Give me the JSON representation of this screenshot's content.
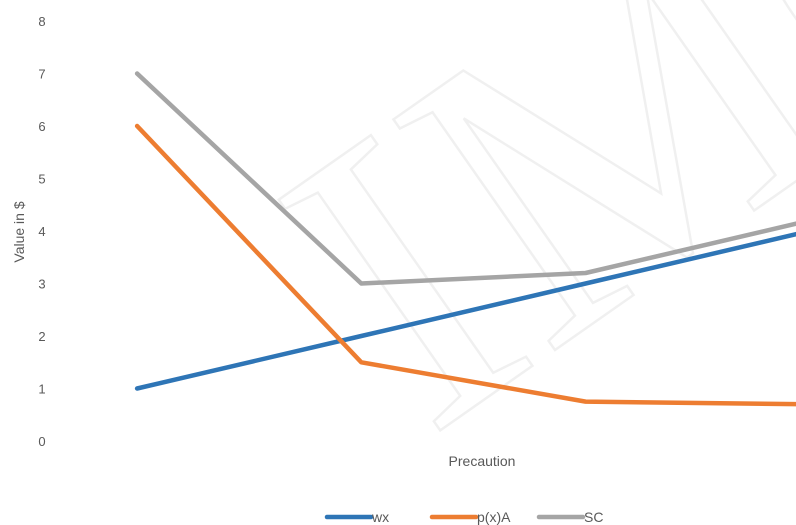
{
  "chart_data": {
    "type": "line",
    "watermark": "IMCS",
    "xlabel": "Precaution",
    "ylabel": "Value in $",
    "ylim": [
      0,
      8
    ],
    "y_ticks": [
      0,
      1,
      2,
      3,
      4,
      5,
      6,
      7,
      8
    ],
    "x": [
      1,
      2,
      3,
      4
    ],
    "xlim": [
      0.5,
      4.05
    ],
    "legend_position": "bottom",
    "grid": false,
    "series": [
      {
        "name": "wx",
        "color": "#2E75B6",
        "values": [
          1,
          2,
          3,
          4
        ]
      },
      {
        "name": "p(x)A",
        "color": "#ED7D31",
        "values": [
          6,
          1.5,
          0.75,
          0.7
        ]
      },
      {
        "name": "SC",
        "color": "#A5A5A5",
        "values": [
          7,
          3,
          3.2,
          4.2
        ]
      }
    ]
  }
}
